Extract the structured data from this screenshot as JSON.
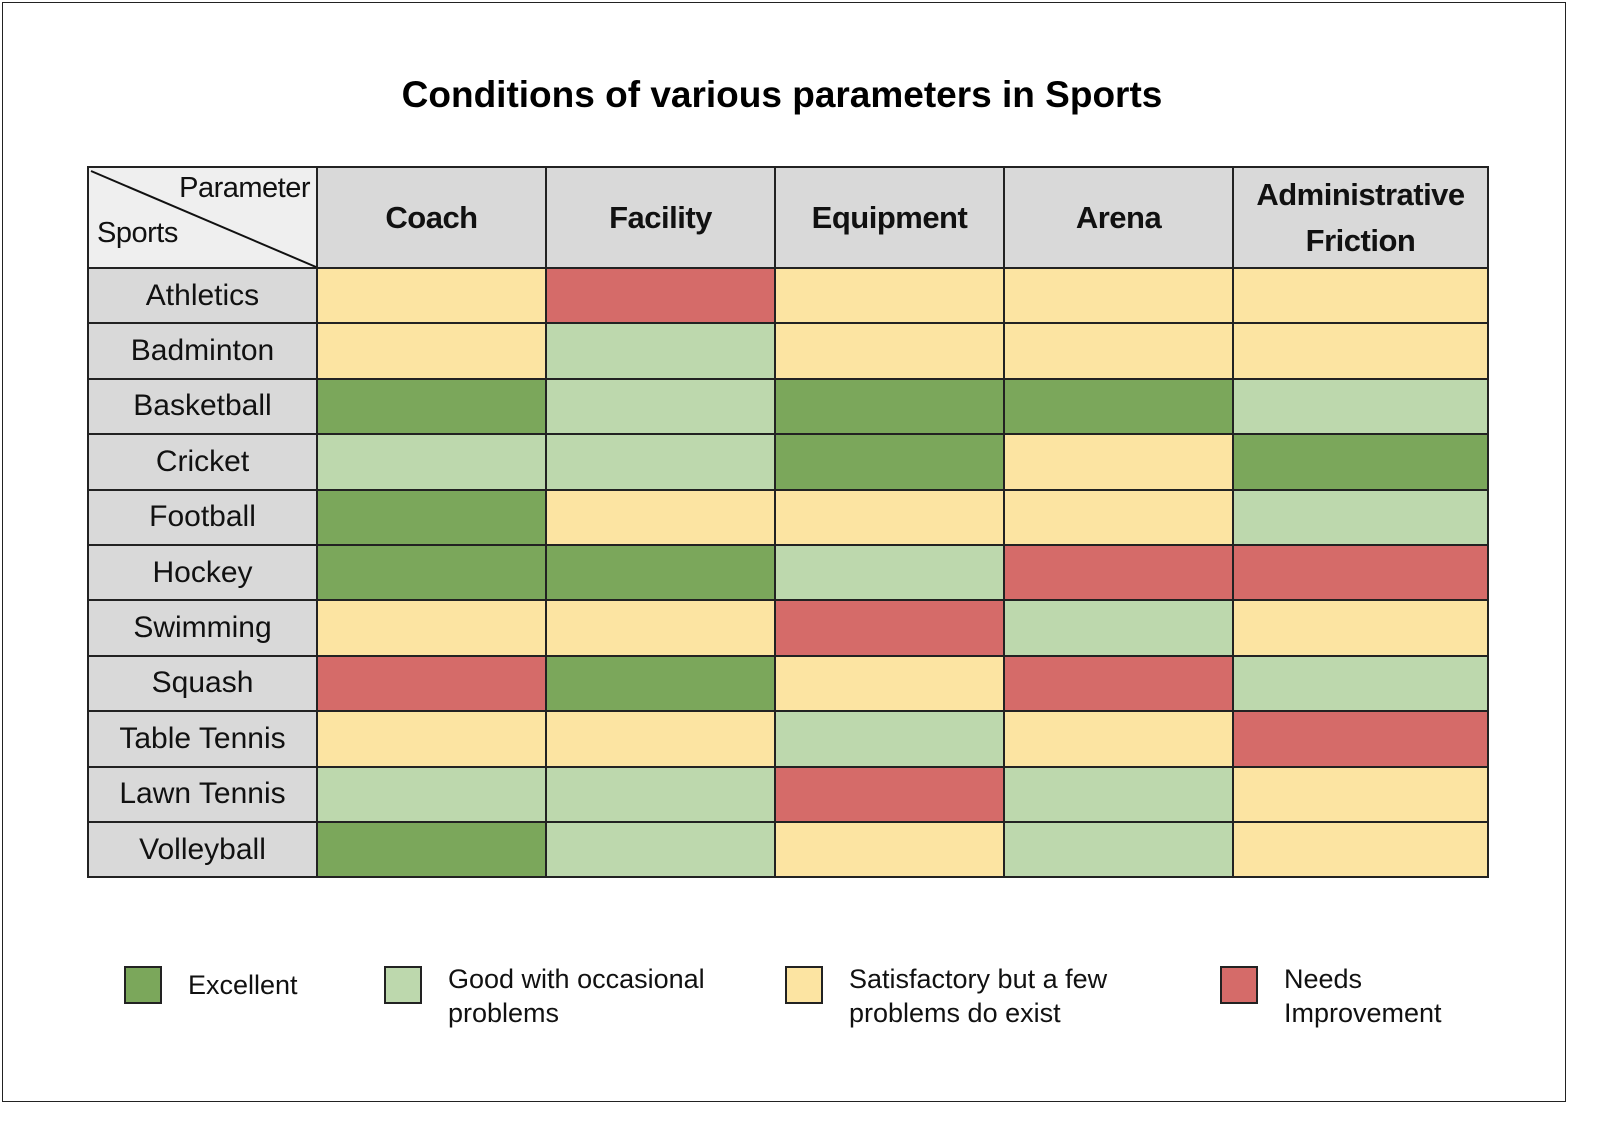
{
  "chart_data": {
    "type": "heatmap",
    "title": "Conditions of various parameters in Sports",
    "corner": {
      "column_axis": "Parameter",
      "row_axis": "Sports"
    },
    "columns": [
      "Coach",
      "Facility",
      "Equipment",
      "Arena",
      "Administrative Friction"
    ],
    "rows": [
      "Athletics",
      "Badminton",
      "Basketball",
      "Cricket",
      "Football",
      "Hockey",
      "Swimming",
      "Squash",
      "Table Tennis",
      "Lawn Tennis",
      "Volleyball"
    ],
    "levels": [
      {
        "key": "E",
        "label": "Excellent",
        "color": "#7ba75b"
      },
      {
        "key": "G",
        "label": "Good with occasional problems",
        "color": "#bdd8ad"
      },
      {
        "key": "S",
        "label": "Satisfactory but a few problems do exist",
        "color": "#fce4a2"
      },
      {
        "key": "N",
        "label": "Needs Improvement",
        "color": "#d56b69"
      }
    ],
    "values": [
      [
        "S",
        "N",
        "S",
        "S",
        "S"
      ],
      [
        "S",
        "G",
        "S",
        "S",
        "S"
      ],
      [
        "E",
        "G",
        "E",
        "E",
        "G"
      ],
      [
        "G",
        "G",
        "E",
        "S",
        "E"
      ],
      [
        "E",
        "S",
        "S",
        "S",
        "G"
      ],
      [
        "E",
        "E",
        "G",
        "N",
        "N"
      ],
      [
        "S",
        "S",
        "N",
        "G",
        "S"
      ],
      [
        "N",
        "E",
        "S",
        "N",
        "G"
      ],
      [
        "S",
        "S",
        "G",
        "S",
        "N"
      ],
      [
        "G",
        "G",
        "N",
        "G",
        "S"
      ],
      [
        "E",
        "G",
        "S",
        "G",
        "S"
      ]
    ],
    "legend_position": "bottom"
  }
}
